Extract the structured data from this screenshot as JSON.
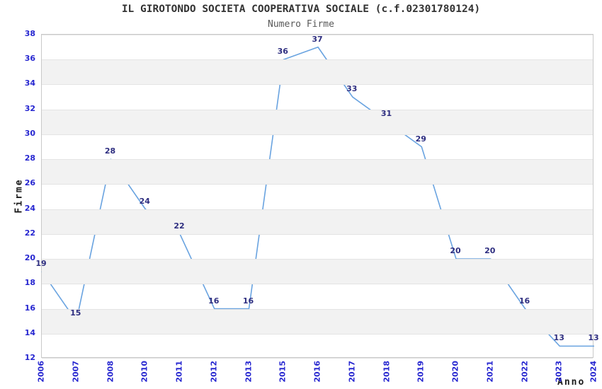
{
  "chart_data": {
    "type": "line",
    "title": "IL GIROTONDO SOCIETA COOPERATIVA SOCIALE (c.f.02301780124)",
    "subtitle": "Numero Firme",
    "xlabel": "Anno",
    "ylabel": "Firme",
    "categories": [
      "2006",
      "2007",
      "2008",
      "2010",
      "2011",
      "2012",
      "2013",
      "2015",
      "2016",
      "2017",
      "2018",
      "2019",
      "2020",
      "2021",
      "2022",
      "2023",
      "2024"
    ],
    "values": [
      19,
      15,
      28,
      24,
      22,
      16,
      16,
      36,
      37,
      33,
      31,
      29,
      20,
      20,
      16,
      13,
      13
    ],
    "ylim": [
      12,
      38
    ],
    "ytick_step": 2,
    "grid": "horizontal",
    "bands": "alternating-light-gray",
    "legend": "none",
    "markers": "none",
    "data_labels": "above-points",
    "colors": {
      "line": "#69a3e0",
      "tick_label": "#2626d0",
      "data_label": "#2e2e80",
      "title": "#333333",
      "subtitle": "#595959",
      "axis_title": "#1a1a1a",
      "band": "#f2f2f2",
      "gridline": "#e4e4e4",
      "plot_border": "#c9c9c9"
    }
  }
}
